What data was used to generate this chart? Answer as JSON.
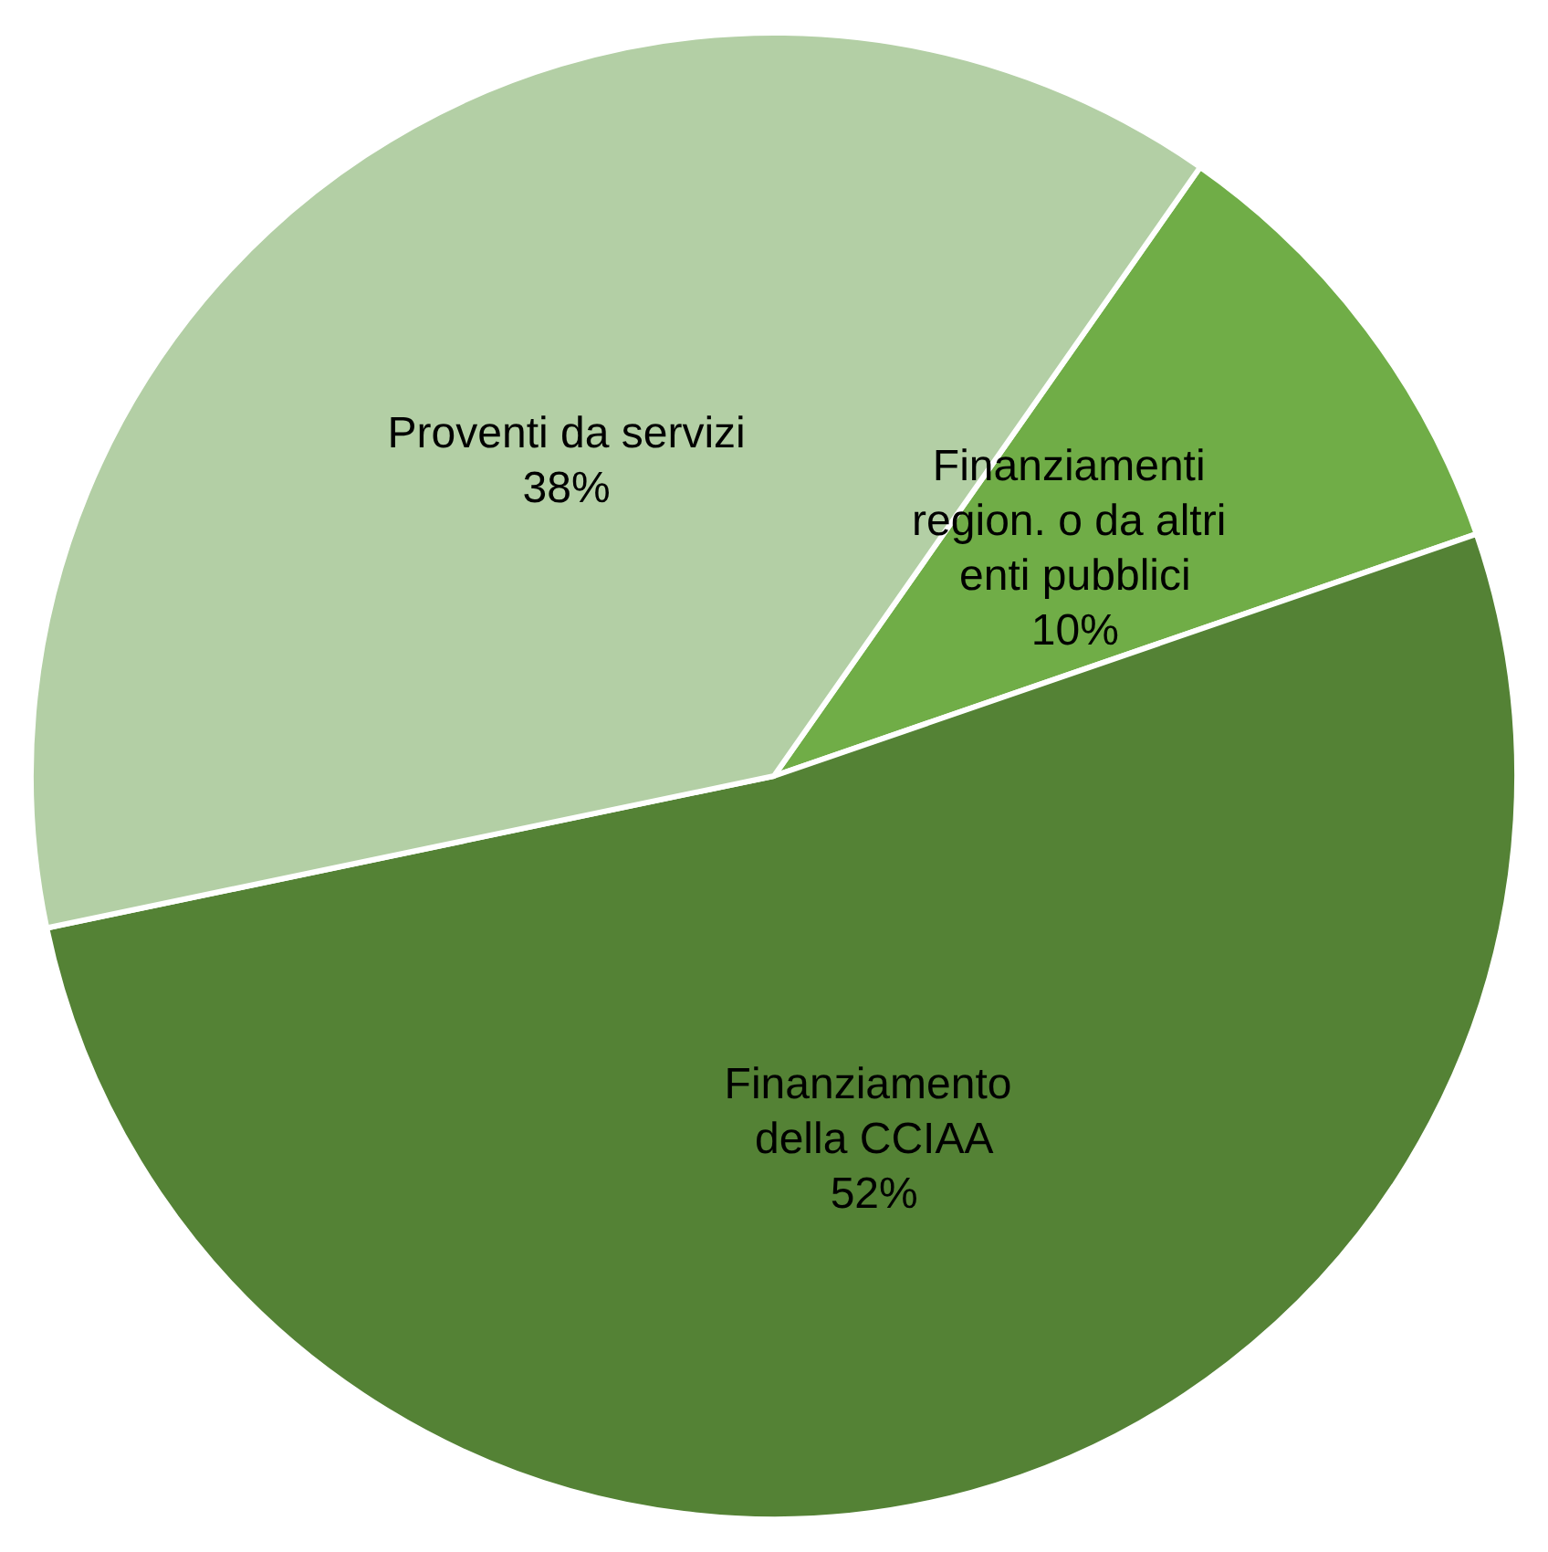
{
  "chart_data": {
    "type": "pie",
    "categories": [
      "Finanziamenti region. o da altri enti pubblici",
      "Finanziamento della CCIAA",
      "Proventi da servizi"
    ],
    "values": [
      10,
      52,
      38
    ],
    "colors": [
      "#70ad47",
      "#548235",
      "#b3cfa5"
    ],
    "value_labels": [
      "10%",
      "52%",
      "38%"
    ],
    "legend": false
  }
}
